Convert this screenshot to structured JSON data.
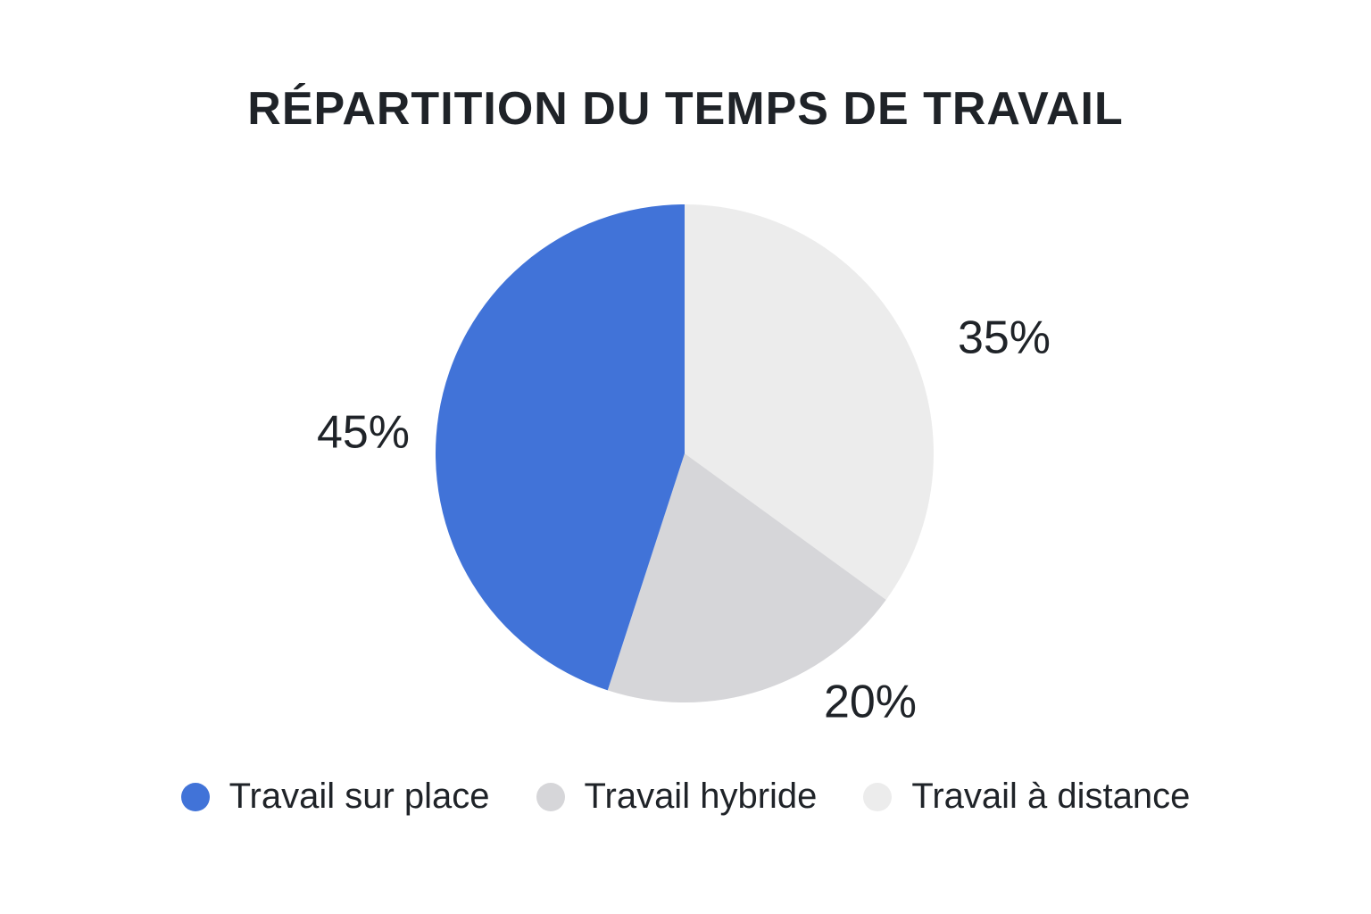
{
  "colors": {
    "text": "#1f2328",
    "travail_sur_place": "#4173d8",
    "travail_hybride": "#d6d6d9",
    "travail_a_distance": "#ececec"
  },
  "chart_data": {
    "type": "pie",
    "title": "RÉPARTITION DU TEMPS DE TRAVAIL",
    "series": [
      {
        "name": "Travail sur place",
        "value": 45,
        "label": "45%",
        "color": "#4173d8"
      },
      {
        "name": "Travail hybride",
        "value": 20,
        "label": "20%",
        "color": "#d6d6d9"
      },
      {
        "name": "Travail à distance",
        "value": 35,
        "label": "35%",
        "color": "#ececec"
      }
    ],
    "legend": {
      "position": "bottom",
      "items": [
        "Travail sur place",
        "Travail hybride",
        "Travail à distance"
      ]
    }
  }
}
